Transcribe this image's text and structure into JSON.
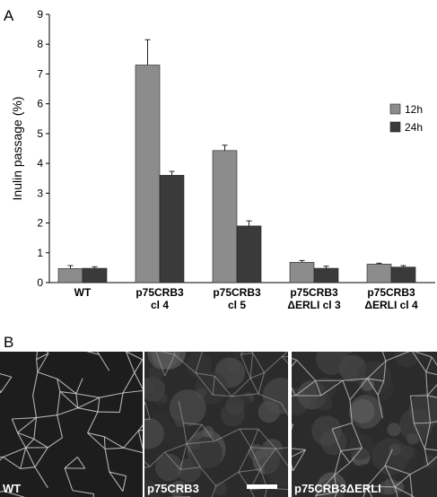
{
  "panel_a_label": "A",
  "panel_b_label": "B",
  "chart_data": {
    "type": "bar",
    "ylabel": "Inulin passage (%)",
    "ylim": [
      0,
      9
    ],
    "yticks": [
      "0",
      "1",
      "2",
      "3",
      "4",
      "5",
      "6",
      "7",
      "8",
      "9"
    ],
    "categories": [
      [
        "WT"
      ],
      [
        "p75CRB3",
        "cl 4"
      ],
      [
        "p75CRB3",
        "cl 5"
      ],
      [
        "p75CRB3",
        "ΔERLI cl 3"
      ],
      [
        "p75CRB3",
        "ΔERLI cl 4"
      ]
    ],
    "series": [
      {
        "name": "12h",
        "color": "#8c8c8c",
        "values": [
          0.47,
          7.3,
          4.43,
          0.68,
          0.62
        ],
        "errors": [
          0.1,
          0.85,
          0.18,
          0.06,
          0.03
        ]
      },
      {
        "name": "24h",
        "color": "#3a3a3a",
        "values": [
          0.48,
          3.6,
          1.9,
          0.48,
          0.52
        ],
        "errors": [
          0.05,
          0.13,
          0.17,
          0.07,
          0.05
        ]
      }
    ],
    "legend_position": "right"
  },
  "micrographs": [
    {
      "label": "WT",
      "scale_bar": false
    },
    {
      "label": "p75CRB3",
      "scale_bar": true
    },
    {
      "label": "p75CRB3ΔERLI",
      "scale_bar": false
    }
  ]
}
